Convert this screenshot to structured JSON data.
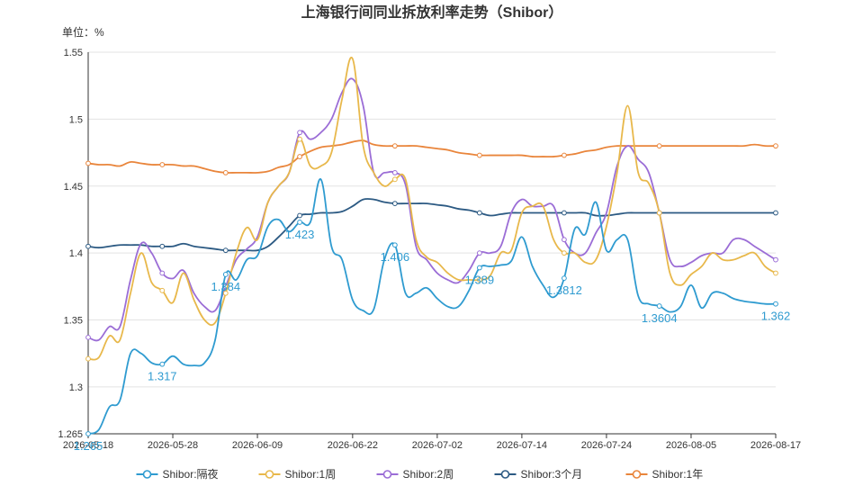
{
  "chart_data": {
    "type": "line",
    "title": "上海银行间同业拆放利率走势（Shibor）",
    "unit_label": "单位：%",
    "xlabel": "",
    "ylabel": "",
    "ylim": [
      1.265,
      1.55
    ],
    "yticks": [
      "1.265",
      "1.3",
      "1.35",
      "1.4",
      "1.45",
      "1.5",
      "1.55"
    ],
    "x_tick_labels": [
      "2026-05-18",
      "2026-05-28",
      "2026-06-09",
      "2026-06-22",
      "2026-07-02",
      "2026-07-14",
      "2026-07-24",
      "2026-08-05",
      "2026-08-17"
    ],
    "x": [
      "2026-05-18",
      "2026-05-19",
      "2026-05-20",
      "2026-05-21",
      "2026-05-22",
      "2026-05-25",
      "2026-05-26",
      "2026-05-27",
      "2026-05-28",
      "2026-05-29",
      "2026-06-01",
      "2026-06-02",
      "2026-06-03",
      "2026-06-04",
      "2026-06-05",
      "2026-06-08",
      "2026-06-09",
      "2026-06-10",
      "2026-06-11",
      "2026-06-12",
      "2026-06-15",
      "2026-06-16",
      "2026-06-17",
      "2026-06-18",
      "2026-06-19",
      "2026-06-22",
      "2026-06-23",
      "2026-06-24",
      "2026-06-25",
      "2026-06-26",
      "2026-06-29",
      "2026-06-30",
      "2026-07-01",
      "2026-07-02",
      "2026-07-03",
      "2026-07-06",
      "2026-07-07",
      "2026-07-08",
      "2026-07-09",
      "2026-07-10",
      "2026-07-13",
      "2026-07-14",
      "2026-07-15",
      "2026-07-16",
      "2026-07-17",
      "2026-07-20",
      "2026-07-21",
      "2026-07-22",
      "2026-07-23",
      "2026-07-24",
      "2026-07-27",
      "2026-07-28",
      "2026-07-29",
      "2026-07-30",
      "2026-07-31",
      "2026-08-03",
      "2026-08-04",
      "2026-08-05",
      "2026-08-06",
      "2026-08-07",
      "2026-08-10",
      "2026-08-11",
      "2026-08-12",
      "2026-08-13",
      "2026-08-14",
      "2026-08-17"
    ],
    "series": [
      {
        "name": "Shibor:隔夜",
        "color": "#2f9bd0",
        "values": [
          1.265,
          1.268,
          1.285,
          1.29,
          1.325,
          1.325,
          1.318,
          1.317,
          1.323,
          1.317,
          1.316,
          1.318,
          1.335,
          1.384,
          1.38,
          1.395,
          1.398,
          1.42,
          1.425,
          1.416,
          1.423,
          1.423,
          1.455,
          1.405,
          1.395,
          1.365,
          1.357,
          1.358,
          1.395,
          1.406,
          1.37,
          1.37,
          1.374,
          1.366,
          1.36,
          1.36,
          1.372,
          1.389,
          1.39,
          1.391,
          1.394,
          1.412,
          1.39,
          1.376,
          1.367,
          1.3812,
          1.418,
          1.414,
          1.438,
          1.402,
          1.41,
          1.41,
          1.368,
          1.362,
          1.3604,
          1.356,
          1.36,
          1.376,
          1.359,
          1.37,
          1.37,
          1.366,
          1.364,
          1.363,
          1.362,
          1.362
        ],
        "labels": [
          {
            "index": 0,
            "text": "1.265"
          },
          {
            "index": 7,
            "text": "1.317"
          },
          {
            "index": 13,
            "text": "1.384"
          },
          {
            "index": 20,
            "text": "1.423"
          },
          {
            "index": 29,
            "text": "1.406"
          },
          {
            "index": 37,
            "text": "1.389"
          },
          {
            "index": 45,
            "text": "1.3812"
          },
          {
            "index": 54,
            "text": "1.3604"
          },
          {
            "index": 65,
            "text": "1.362"
          }
        ]
      },
      {
        "name": "Shibor:1周",
        "color": "#e8b84b",
        "values": [
          1.321,
          1.322,
          1.338,
          1.335,
          1.37,
          1.4,
          1.378,
          1.372,
          1.363,
          1.385,
          1.365,
          1.35,
          1.348,
          1.37,
          1.4,
          1.419,
          1.41,
          1.438,
          1.45,
          1.46,
          1.485,
          1.465,
          1.465,
          1.475,
          1.515,
          1.545,
          1.48,
          1.46,
          1.45,
          1.455,
          1.455,
          1.41,
          1.397,
          1.393,
          1.385,
          1.38,
          1.38,
          1.38,
          1.383,
          1.4,
          1.402,
          1.43,
          1.435,
          1.435,
          1.41,
          1.4,
          1.4,
          1.393,
          1.395,
          1.42,
          1.46,
          1.51,
          1.46,
          1.452,
          1.43,
          1.385,
          1.376,
          1.384,
          1.39,
          1.4,
          1.395,
          1.395,
          1.398,
          1.4,
          1.39,
          1.385
        ]
      },
      {
        "name": "Shibor:2周",
        "color": "#9b6dd6",
        "values": [
          1.337,
          1.335,
          1.345,
          1.345,
          1.38,
          1.407,
          1.4,
          1.385,
          1.381,
          1.387,
          1.37,
          1.36,
          1.357,
          1.375,
          1.395,
          1.403,
          1.412,
          1.438,
          1.45,
          1.46,
          1.49,
          1.485,
          1.49,
          1.5,
          1.52,
          1.53,
          1.51,
          1.46,
          1.46,
          1.46,
          1.451,
          1.405,
          1.395,
          1.385,
          1.38,
          1.378,
          1.387,
          1.4,
          1.4,
          1.405,
          1.43,
          1.44,
          1.435,
          1.435,
          1.435,
          1.41,
          1.4,
          1.4,
          1.415,
          1.43,
          1.465,
          1.48,
          1.47,
          1.46,
          1.43,
          1.395,
          1.39,
          1.393,
          1.398,
          1.4,
          1.4,
          1.41,
          1.41,
          1.405,
          1.4,
          1.395
        ]
      },
      {
        "name": "Shibor:3个月",
        "color": "#2c5a83",
        "values": [
          1.405,
          1.404,
          1.405,
          1.406,
          1.406,
          1.406,
          1.405,
          1.405,
          1.405,
          1.407,
          1.405,
          1.404,
          1.403,
          1.402,
          1.402,
          1.402,
          1.402,
          1.405,
          1.412,
          1.42,
          1.428,
          1.429,
          1.43,
          1.43,
          1.431,
          1.435,
          1.44,
          1.44,
          1.438,
          1.437,
          1.437,
          1.437,
          1.437,
          1.436,
          1.435,
          1.433,
          1.432,
          1.43,
          1.428,
          1.429,
          1.43,
          1.43,
          1.43,
          1.43,
          1.43,
          1.43,
          1.43,
          1.43,
          1.428,
          1.428,
          1.429,
          1.43,
          1.43,
          1.43,
          1.43,
          1.43,
          1.43,
          1.43,
          1.43,
          1.43,
          1.43,
          1.43,
          1.43,
          1.43,
          1.43,
          1.43
        ]
      },
      {
        "name": "Shibor:1年",
        "color": "#e9853b",
        "values": [
          1.467,
          1.466,
          1.466,
          1.465,
          1.468,
          1.467,
          1.466,
          1.466,
          1.466,
          1.465,
          1.465,
          1.463,
          1.461,
          1.46,
          1.46,
          1.46,
          1.46,
          1.461,
          1.464,
          1.466,
          1.472,
          1.476,
          1.479,
          1.48,
          1.481,
          1.483,
          1.484,
          1.481,
          1.48,
          1.48,
          1.48,
          1.48,
          1.479,
          1.478,
          1.477,
          1.475,
          1.474,
          1.473,
          1.473,
          1.473,
          1.473,
          1.473,
          1.472,
          1.472,
          1.472,
          1.473,
          1.474,
          1.476,
          1.477,
          1.479,
          1.48,
          1.48,
          1.48,
          1.48,
          1.48,
          1.48,
          1.48,
          1.48,
          1.48,
          1.48,
          1.48,
          1.48,
          1.48,
          1.481,
          1.48,
          1.48
        ]
      }
    ],
    "legend_position": "bottom",
    "grid": true
  }
}
